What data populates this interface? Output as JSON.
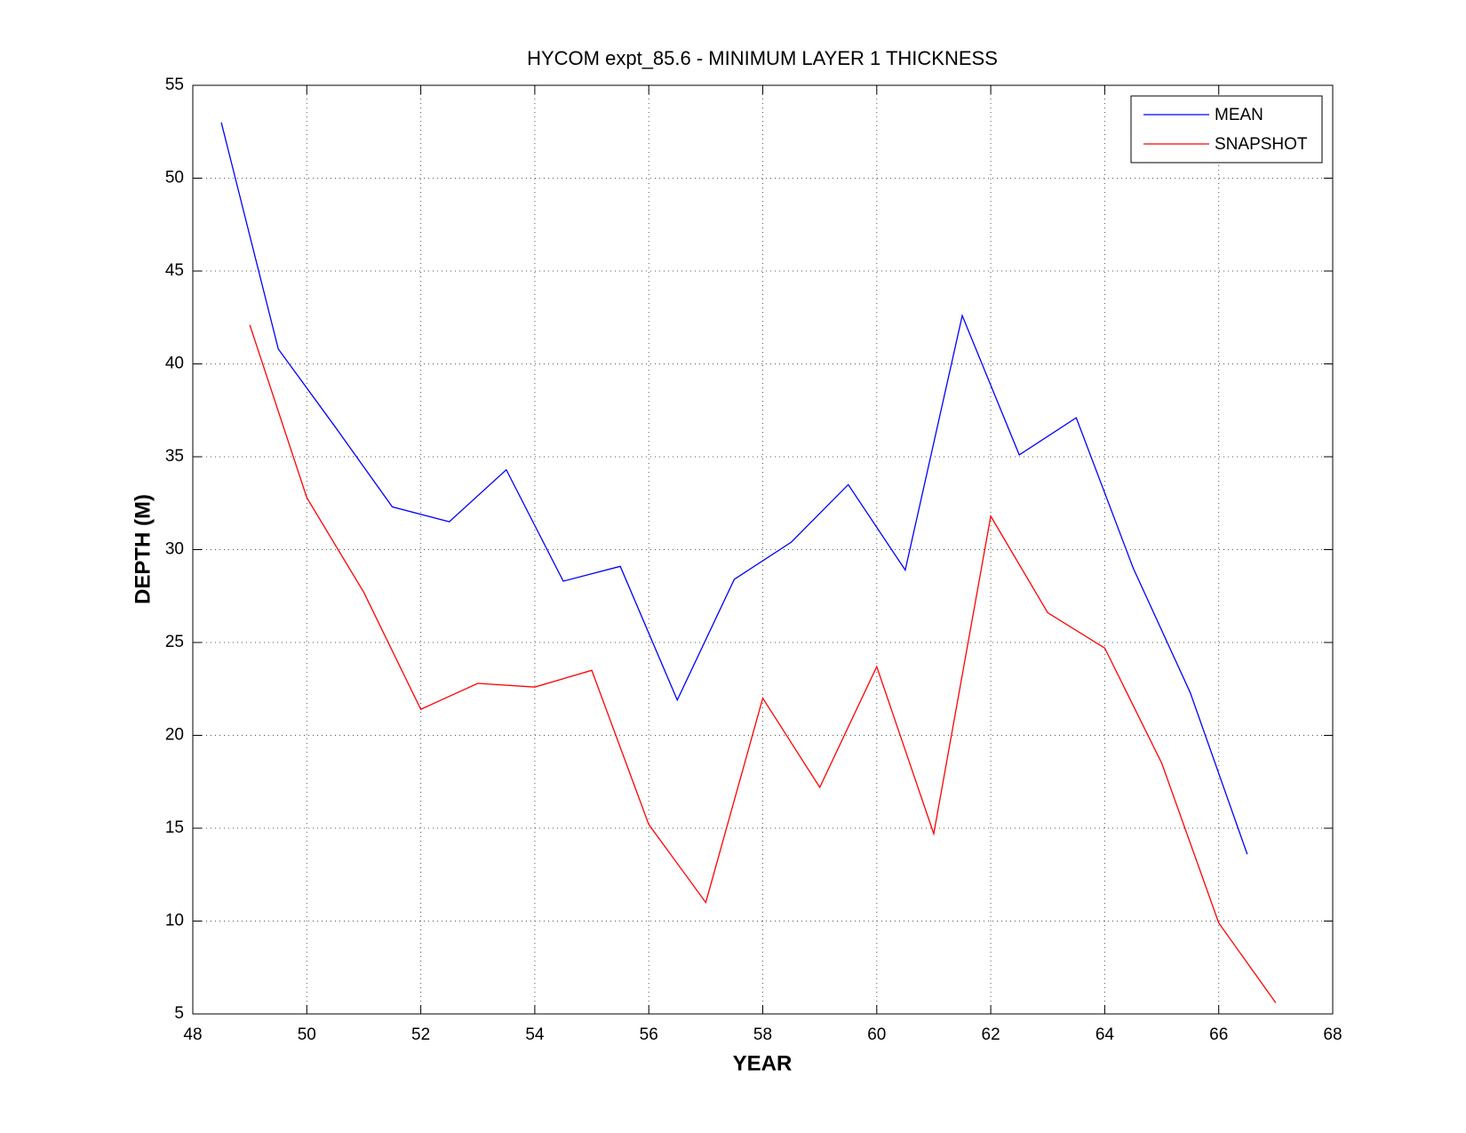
{
  "chart_data": {
    "type": "line",
    "title": "HYCOM expt_85.6 - MINIMUM LAYER 1 THICKNESS",
    "x_label": "YEAR",
    "y_label": "DEPTH (M)",
    "series": [
      {
        "name": "MEAN",
        "color": "#0000ff",
        "x": [
          48.5,
          49.5,
          50.5,
          51.5,
          52.5,
          53.5,
          54.5,
          55.5,
          56.5,
          57.5,
          58.5,
          59.5,
          60.5,
          61.5,
          62.5,
          63.5,
          64.5,
          65.5,
          66.5
        ],
        "values": [
          53,
          40.8,
          36.6,
          32.3,
          31.5,
          34.3,
          28.3,
          29.1,
          21.9,
          28.4,
          30.4,
          33.5,
          28.9,
          42.6,
          35.1,
          37.1,
          29,
          22.3,
          13.6
        ]
      },
      {
        "name": "SNAPSHOT",
        "color": "#ff0000",
        "x": [
          49,
          50,
          51,
          52,
          53,
          54,
          55,
          56,
          57,
          58,
          59,
          60,
          61,
          62,
          63,
          64,
          65,
          66,
          67
        ],
        "values": [
          42.1,
          32.8,
          27.7,
          21.4,
          22.8,
          22.6,
          23.5,
          15.2,
          11,
          22,
          17.2,
          23.7,
          14.7,
          31.8,
          26.6,
          24.7,
          18.5,
          9.9,
          5.6
        ]
      }
    ],
    "xlim": [
      48,
      68
    ],
    "xticks": [
      48,
      50,
      52,
      54,
      56,
      58,
      60,
      62,
      64,
      66,
      68
    ],
    "ylim": [
      5,
      55
    ],
    "yticks": [
      5,
      10,
      15,
      20,
      25,
      30,
      35,
      40,
      45,
      50,
      55
    ],
    "grid": true,
    "legend": "top-right"
  }
}
